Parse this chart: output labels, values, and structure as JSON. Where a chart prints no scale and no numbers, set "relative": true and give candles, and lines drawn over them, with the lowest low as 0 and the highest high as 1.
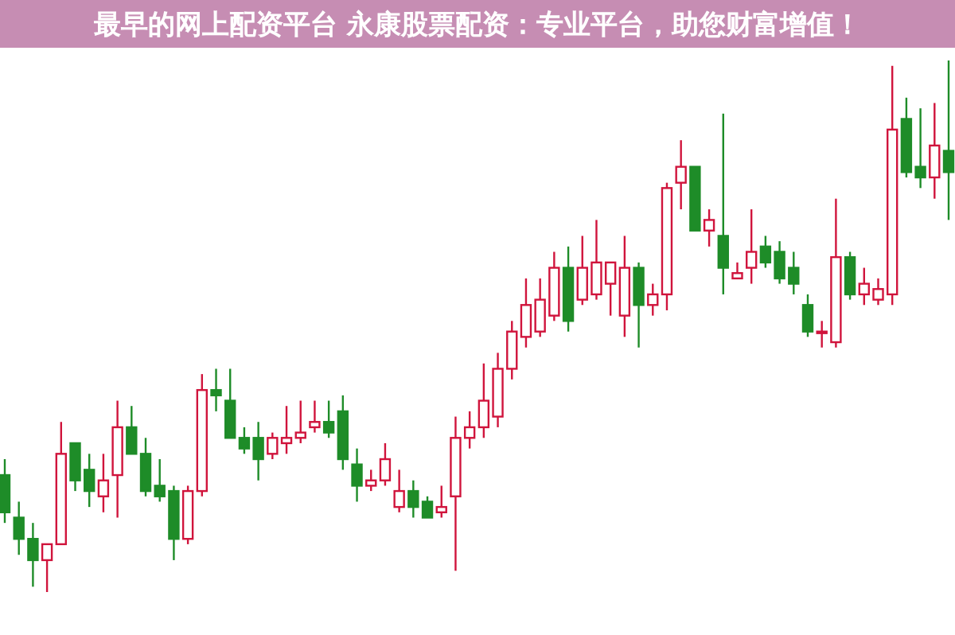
{
  "chart_data": {
    "type": "candlestick",
    "title": "最早的网上配资平台 永康股票配资：专业平台，助您财富增值！",
    "relative": true,
    "categories": [
      null,
      null,
      null,
      null,
      null,
      null,
      null,
      null,
      null,
      null,
      null,
      null,
      null,
      null,
      null,
      null,
      null,
      null,
      null,
      null,
      null,
      null,
      null,
      null,
      null,
      null,
      null,
      null,
      null,
      null,
      null,
      null,
      null,
      null,
      null,
      null,
      null,
      null,
      null,
      null,
      null,
      null,
      null,
      null,
      null,
      null,
      null,
      null,
      null,
      null,
      null,
      null,
      null,
      null,
      null,
      null,
      null,
      null,
      null,
      null,
      null,
      null,
      null,
      null,
      null,
      null,
      null,
      null
    ],
    "colors": [
      "#1e8c28",
      "#1e8c28",
      "#1e8c28",
      "#d0143c",
      "#d0143c",
      "#1e8c28",
      "#1e8c28",
      "#d0143c",
      "#d0143c",
      "#1e8c28",
      "#1e8c28",
      "#1e8c28",
      "#1e8c28",
      "#d0143c",
      "#d0143c",
      "#1e8c28",
      "#1e8c28",
      "#1e8c28",
      "#1e8c28",
      "#d0143c",
      "#d0143c",
      "#d0143c",
      "#d0143c",
      "#1e8c28",
      "#1e8c28",
      "#1e8c28",
      "#d0143c",
      "#d0143c",
      "#d0143c",
      "#1e8c28",
      "#1e8c28",
      "#d0143c",
      "#d0143c",
      "#d0143c",
      "#d0143c",
      "#d0143c",
      "#d0143c",
      "#d0143c",
      "#d0143c",
      "#d0143c",
      "#1e8c28",
      "#d0143c",
      "#d0143c",
      "#d0143c",
      "#d0143c",
      "#1e8c28",
      "#d0143c",
      "#d0143c",
      "#d0143c",
      "#1e8c28",
      "#d0143c",
      "#1e8c28",
      "#d0143c",
      "#d0143c",
      "#1e8c28",
      "#1e8c28",
      "#1e8c28",
      "#1e8c28",
      "#d0143c",
      "#d0143c",
      "#1e8c28",
      "#d0143c",
      "#d0143c",
      "#d0143c",
      "#1e8c28",
      "#1e8c28",
      "#d0143c",
      "#1e8c28"
    ],
    "ohlc": [
      [
        0.22,
        0.25,
        0.13,
        0.15
      ],
      [
        0.14,
        0.17,
        0.07,
        0.1
      ],
      [
        0.1,
        0.13,
        0.01,
        0.06
      ],
      [
        0.06,
        0.09,
        0,
        0.09
      ],
      [
        0.09,
        0.32,
        0.09,
        0.26
      ],
      [
        0.28,
        0.28,
        0.19,
        0.21
      ],
      [
        0.23,
        0.26,
        0.16,
        0.19
      ],
      [
        0.18,
        0.26,
        0.15,
        0.21
      ],
      [
        0.22,
        0.36,
        0.14,
        0.31
      ],
      [
        0.31,
        0.35,
        0.26,
        0.26
      ],
      [
        0.26,
        0.29,
        0.18,
        0.19
      ],
      [
        0.2,
        0.25,
        0.17,
        0.18
      ],
      [
        0.19,
        0.2,
        0.06,
        0.1
      ],
      [
        0.1,
        0.2,
        0.09,
        0.19
      ],
      [
        0.19,
        0.41,
        0.18,
        0.38
      ],
      [
        0.38,
        0.42,
        0.34,
        0.37
      ],
      [
        0.36,
        0.42,
        0.29,
        0.29
      ],
      [
        0.29,
        0.31,
        0.26,
        0.27
      ],
      [
        0.29,
        0.32,
        0.21,
        0.25
      ],
      [
        0.26,
        0.3,
        0.25,
        0.29
      ],
      [
        0.28,
        0.35,
        0.26,
        0.29
      ],
      [
        0.29,
        0.36,
        0.28,
        0.3
      ],
      [
        0.31,
        0.36,
        0.3,
        0.32
      ],
      [
        0.32,
        0.36,
        0.29,
        0.3
      ],
      [
        0.34,
        0.37,
        0.23,
        0.25
      ],
      [
        0.24,
        0.27,
        0.17,
        0.2
      ],
      [
        0.2,
        0.23,
        0.19,
        0.21
      ],
      [
        0.21,
        0.28,
        0.2,
        0.25
      ],
      [
        0.16,
        0.23,
        0.15,
        0.19
      ],
      [
        0.19,
        0.21,
        0.14,
        0.16
      ],
      [
        0.17,
        0.18,
        0.14,
        0.14
      ],
      [
        0.15,
        0.2,
        0.14,
        0.16
      ],
      [
        0.18,
        0.33,
        0.04,
        0.29
      ],
      [
        0.29,
        0.34,
        0.27,
        0.31
      ],
      [
        0.31,
        0.43,
        0.29,
        0.36
      ],
      [
        0.33,
        0.45,
        0.31,
        0.42
      ],
      [
        0.42,
        0.51,
        0.4,
        0.49
      ],
      [
        0.48,
        0.59,
        0.46,
        0.54
      ],
      [
        0.49,
        0.59,
        0.48,
        0.55
      ],
      [
        0.52,
        0.64,
        0.51,
        0.61
      ],
      [
        0.61,
        0.65,
        0.49,
        0.51
      ],
      [
        0.55,
        0.67,
        0.54,
        0.61
      ],
      [
        0.56,
        0.7,
        0.55,
        0.62
      ],
      [
        0.58,
        0.62,
        0.52,
        0.62
      ],
      [
        0.52,
        0.67,
        0.48,
        0.61
      ],
      [
        0.61,
        0.62,
        0.46,
        0.54
      ],
      [
        0.54,
        0.58,
        0.52,
        0.56
      ],
      [
        0.56,
        0.77,
        0.53,
        0.76
      ],
      [
        0.77,
        0.85,
        0.72,
        0.8
      ],
      [
        0.8,
        0.8,
        0.68,
        0.68
      ],
      [
        0.68,
        0.72,
        0.65,
        0.7
      ],
      [
        0.67,
        0.9,
        0.56,
        0.61
      ],
      [
        0.59,
        0.62,
        0.59,
        0.6
      ],
      [
        0.61,
        0.72,
        0.58,
        0.64
      ],
      [
        0.65,
        0.67,
        0.61,
        0.62
      ],
      [
        0.64,
        0.66,
        0.58,
        0.59
      ],
      [
        0.61,
        0.64,
        0.56,
        0.58
      ],
      [
        0.54,
        0.56,
        0.48,
        0.49
      ],
      [
        0.49,
        0.51,
        0.46,
        0.49
      ],
      [
        0.47,
        0.74,
        0.46,
        0.63
      ],
      [
        0.63,
        0.64,
        0.55,
        0.56
      ],
      [
        0.56,
        0.61,
        0.54,
        0.58
      ],
      [
        0.55,
        0.59,
        0.54,
        0.57
      ],
      [
        0.56,
        0.99,
        0.54,
        0.87
      ],
      [
        0.89,
        0.93,
        0.78,
        0.79
      ],
      [
        0.8,
        0.91,
        0.76,
        0.78
      ],
      [
        0.78,
        0.92,
        0.74,
        0.84
      ],
      [
        0.83,
        1.0,
        0.7,
        0.79
      ]
    ]
  }
}
